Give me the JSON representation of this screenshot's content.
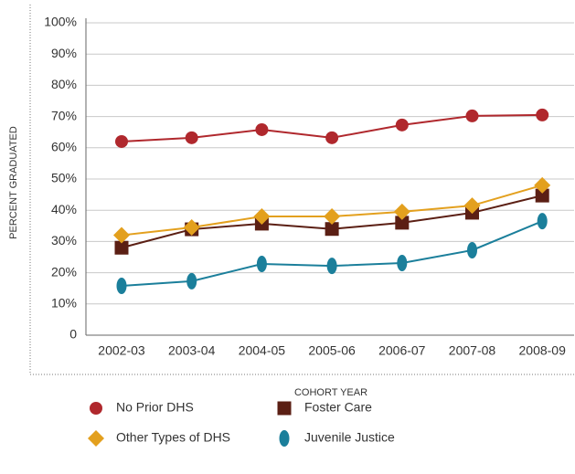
{
  "chart_data": {
    "type": "line",
    "y_label": "PERCENT GRADUATED",
    "x_label": "COHORT YEAR",
    "categories": [
      "2002-03",
      "2003-04",
      "2004-05",
      "2005-06",
      "2006-07",
      "2007-08",
      "2008-09"
    ],
    "series": [
      {
        "name": "No Prior DHS",
        "color": "#b0282d",
        "marker": "circle",
        "values": [
          62,
          63.2,
          65.8,
          63.2,
          67.3,
          70.2,
          70.5
        ]
      },
      {
        "name": "Foster Care",
        "color": "#5b1f14",
        "marker": "square",
        "values": [
          28,
          33.9,
          35.7,
          34,
          36,
          39.2,
          44.7
        ]
      },
      {
        "name": "Other Types of DHS",
        "color": "#e3a01e",
        "marker": "diamond",
        "values": [
          32,
          34.5,
          38,
          38,
          39.5,
          41.5,
          48
        ]
      },
      {
        "name": "Juvenile Justice",
        "color": "#1b7f9b",
        "marker": "ellipse",
        "values": [
          15.8,
          17.3,
          22.8,
          22.2,
          23.1,
          27.2,
          36.5
        ]
      }
    ],
    "ylim": [
      0,
      100
    ],
    "yticks": [
      0,
      {
        "value": 10,
        "label": "10%"
      },
      {
        "value": 20,
        "label": "20%"
      },
      {
        "value": 30,
        "label": "30%"
      },
      {
        "value": 40,
        "label": "40%"
      },
      {
        "value": 50,
        "label": "50%"
      },
      {
        "value": 60,
        "label": "60%"
      },
      {
        "value": 70,
        "label": "70%"
      },
      {
        "value": 80,
        "label": "80%"
      },
      {
        "value": 90,
        "label": "90%"
      },
      {
        "value": 100,
        "label": "100%"
      }
    ],
    "grid": true
  }
}
